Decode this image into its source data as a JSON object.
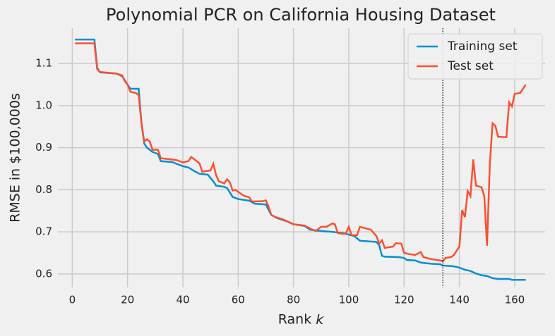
{
  "chart_data": {
    "type": "line",
    "title": "Polynomial PCR on California Housing Dataset",
    "xlabel": "Rank k",
    "ylabel": "RMSE in $100,000s",
    "xlim": [
      -5.2,
      171
    ],
    "ylim": [
      0.568,
      1.184
    ],
    "xticks": [
      0,
      20,
      40,
      60,
      80,
      100,
      120,
      140,
      160
    ],
    "yticks": [
      0.6,
      0.7,
      0.8,
      0.9,
      {
        "value": 1,
        "label": "1.0"
      },
      1.1
    ],
    "grid": true,
    "legend": "upper right",
    "vline": 134,
    "series": [
      {
        "name": "Training set",
        "color": "#008fd5",
        "x": [
          1,
          8,
          9,
          10,
          16,
          18,
          20,
          21,
          24,
          25,
          26,
          27,
          29,
          31,
          32,
          36,
          40,
          42,
          44,
          46,
          49,
          51,
          52,
          55,
          56,
          58,
          60,
          64,
          66,
          70,
          72,
          74,
          78,
          80,
          84,
          86,
          90,
          94,
          98,
          102,
          104,
          110,
          111,
          112,
          113,
          118,
          120,
          121,
          124,
          126,
          130,
          133,
          134,
          138,
          140,
          142,
          144,
          146,
          148,
          150,
          152,
          154,
          158,
          159,
          164
        ],
        "values": [
          1.157,
          1.157,
          1.09,
          1.079,
          1.076,
          1.07,
          1.05,
          1.04,
          1.04,
          0.96,
          0.91,
          0.9,
          0.89,
          0.885,
          0.868,
          0.866,
          0.856,
          0.853,
          0.845,
          0.838,
          0.836,
          0.82,
          0.81,
          0.807,
          0.804,
          0.783,
          0.778,
          0.774,
          0.767,
          0.765,
          0.74,
          0.733,
          0.724,
          0.718,
          0.714,
          0.705,
          0.702,
          0.7,
          0.697,
          0.69,
          0.679,
          0.676,
          0.668,
          0.643,
          0.641,
          0.64,
          0.638,
          0.633,
          0.632,
          0.627,
          0.624,
          0.623,
          0.62,
          0.618,
          0.615,
          0.61,
          0.607,
          0.601,
          0.597,
          0.595,
          0.59,
          0.588,
          0.588,
          0.586,
          0.586
        ]
      },
      {
        "name": "Test set",
        "color": "#fc4f30",
        "x": [
          1,
          8,
          9,
          10,
          16,
          18,
          19,
          20,
          21,
          23,
          24,
          25,
          26,
          27,
          28,
          29,
          31,
          32,
          36,
          38,
          40,
          42,
          43,
          45,
          46,
          47,
          50,
          51,
          52,
          53,
          55,
          56,
          57,
          58,
          59,
          60,
          62,
          64,
          65,
          69,
          70,
          71,
          72,
          74,
          76,
          80,
          84,
          86,
          88,
          90,
          92,
          94,
          95,
          96,
          98,
          99,
          100,
          101,
          103,
          104,
          108,
          110,
          111,
          112,
          113,
          116,
          117,
          119,
          120,
          122,
          124,
          126,
          127,
          130,
          133,
          134,
          135,
          137,
          138,
          139,
          140,
          141,
          142,
          143,
          144,
          145,
          146,
          148,
          149,
          150,
          151,
          152,
          153,
          154,
          157,
          158,
          159,
          160,
          162,
          164
        ],
        "values": [
          1.148,
          1.148,
          1.087,
          1.08,
          1.076,
          1.072,
          1.058,
          1.05,
          1.033,
          1.03,
          1.025,
          0.96,
          0.915,
          0.92,
          0.915,
          0.895,
          0.895,
          0.875,
          0.872,
          0.87,
          0.865,
          0.868,
          0.878,
          0.868,
          0.863,
          0.843,
          0.846,
          0.862,
          0.835,
          0.82,
          0.815,
          0.825,
          0.818,
          0.798,
          0.8,
          0.795,
          0.786,
          0.782,
          0.772,
          0.773,
          0.775,
          0.76,
          0.74,
          0.734,
          0.73,
          0.718,
          0.715,
          0.708,
          0.702,
          0.712,
          0.712,
          0.72,
          0.718,
          0.697,
          0.695,
          0.697,
          0.712,
          0.692,
          0.692,
          0.712,
          0.705,
          0.69,
          0.672,
          0.68,
          0.662,
          0.665,
          0.673,
          0.672,
          0.65,
          0.647,
          0.645,
          0.652,
          0.64,
          0.635,
          0.632,
          0.63,
          0.638,
          0.64,
          0.645,
          0.655,
          0.665,
          0.752,
          0.735,
          0.797,
          0.785,
          0.872,
          0.81,
          0.806,
          0.785,
          0.667,
          0.86,
          0.958,
          0.952,
          0.926,
          0.925,
          1.008,
          0.998,
          1.028,
          1.03,
          1.05
        ]
      }
    ]
  }
}
